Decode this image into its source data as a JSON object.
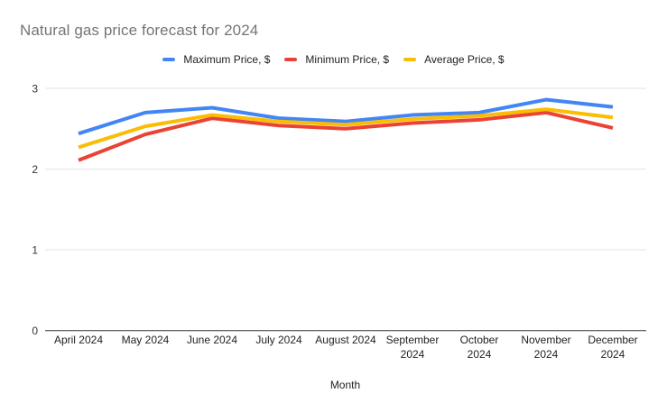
{
  "chart": {
    "title": "Natural gas price forecast for 2024",
    "xlabel": "Month"
  },
  "legend": {
    "items": [
      {
        "label": "Maximum Price, $",
        "color": "#4285F4"
      },
      {
        "label": "Minimum Price, $",
        "color": "#EA4335"
      },
      {
        "label": "Average Price, $",
        "color": "#FBBC04"
      }
    ]
  },
  "chart_data": {
    "type": "line",
    "title": "Natural gas price forecast for 2024",
    "xlabel": "Month",
    "ylabel": "",
    "categories": [
      "April 2024",
      "May 2024",
      "June 2024",
      "July 2024",
      "August 2024",
      "September 2024",
      "October 2024",
      "November 2024",
      "December 2024"
    ],
    "series": [
      {
        "name": "Maximum Price, $",
        "color": "#4285F4",
        "values": [
          2.44,
          2.7,
          2.76,
          2.63,
          2.59,
          2.67,
          2.7,
          2.86,
          2.77
        ]
      },
      {
        "name": "Minimum Price, $",
        "color": "#EA4335",
        "values": [
          2.11,
          2.43,
          2.63,
          2.54,
          2.5,
          2.57,
          2.61,
          2.7,
          2.51
        ]
      },
      {
        "name": "Average Price, $",
        "color": "#FBBC04",
        "values": [
          2.27,
          2.53,
          2.67,
          2.59,
          2.55,
          2.62,
          2.66,
          2.74,
          2.64
        ]
      }
    ],
    "ylim": [
      0,
      3
    ],
    "yticks": [
      0,
      1,
      2,
      3
    ],
    "grid": true,
    "legend_position": "top",
    "colors": {
      "grid": "#e3e3e3",
      "axis": "#333333",
      "tick_text": "#333333",
      "title_text": "#757575"
    }
  }
}
